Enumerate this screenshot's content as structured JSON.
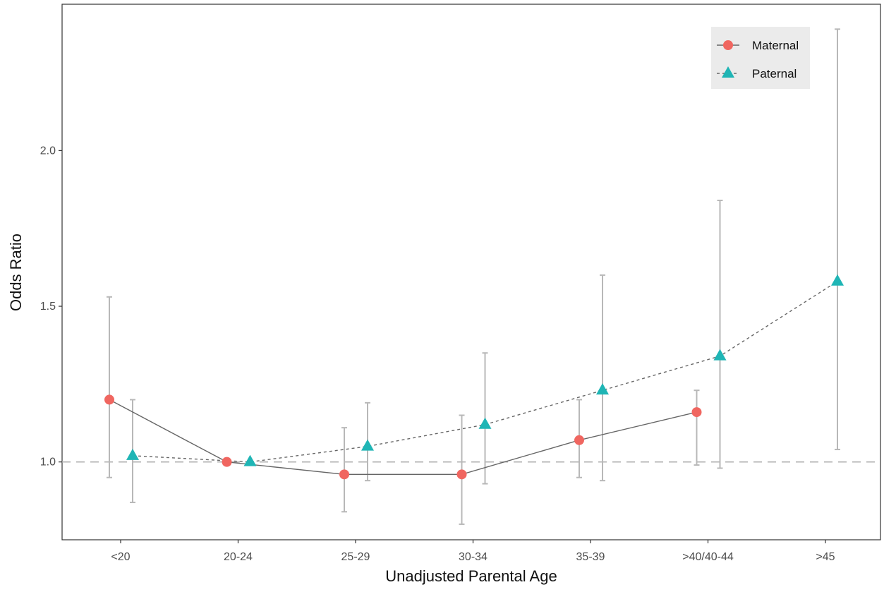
{
  "chart_data": {
    "type": "line",
    "title": "",
    "xlabel": "Unadjusted Parental Age",
    "ylabel": "Odds Ratio",
    "categories": [
      "<20",
      "20-24",
      "25-29",
      "30-34",
      "35-39",
      ">40/40-44",
      ">45"
    ],
    "yticks": [
      "1.0",
      "1.5",
      "2.0"
    ],
    "ylim": [
      0.75,
      2.47
    ],
    "reference_line": 1.0,
    "legend_position": "top-right",
    "series": [
      {
        "name": "Maternal",
        "marker": "circle",
        "line_style": "solid",
        "color": "#F06660",
        "values": [
          1.2,
          1.0,
          0.96,
          0.96,
          1.07,
          1.16,
          null
        ],
        "ci_lower": [
          0.95,
          1.0,
          0.84,
          0.8,
          0.95,
          0.99,
          null
        ],
        "ci_upper": [
          1.53,
          1.0,
          1.11,
          1.15,
          1.2,
          1.23,
          null
        ]
      },
      {
        "name": "Paternal",
        "marker": "triangle",
        "line_style": "dotted",
        "color": "#1FB5B5",
        "values": [
          1.02,
          1.0,
          1.05,
          1.12,
          1.23,
          1.34,
          1.58
        ],
        "ci_lower": [
          0.87,
          1.0,
          0.94,
          0.93,
          0.94,
          0.98,
          1.04
        ],
        "ci_upper": [
          1.2,
          1.0,
          1.19,
          1.35,
          1.6,
          1.84,
          2.39
        ]
      }
    ],
    "colors": {
      "errorbar": "#B8B8B8",
      "line": "#666666",
      "reference": "#B0B0B0",
      "legend_bg": "#EBEBEB",
      "panel_border": "#333333"
    }
  }
}
